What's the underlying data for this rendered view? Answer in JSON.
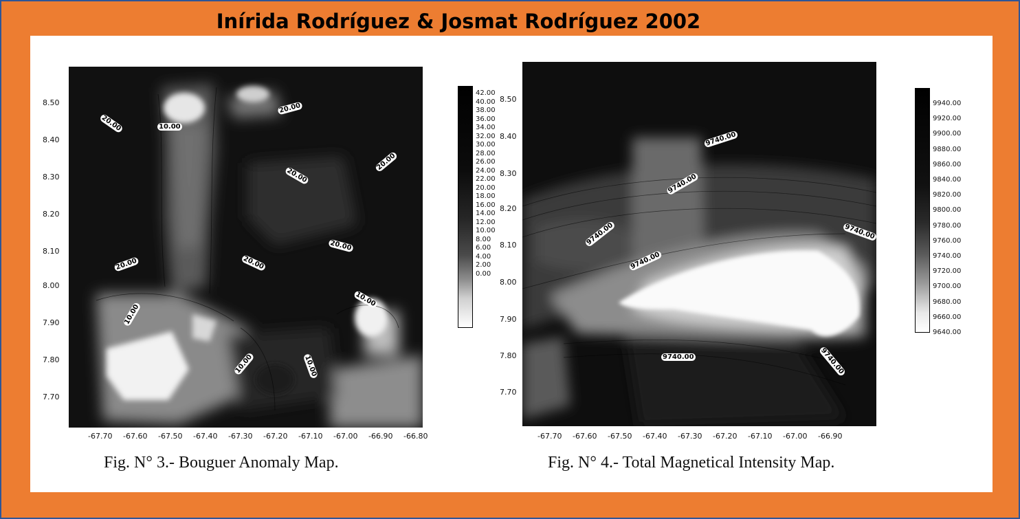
{
  "header": {
    "title": "Inírida Rodríguez & Josmat Rodríguez 2002"
  },
  "fig3": {
    "caption": "Fig. N° 3.- Bouguer Anomaly Map.",
    "y_ticks": [
      "8.50",
      "8.40",
      "8.30",
      "8.20",
      "8.10",
      "8.00",
      "7.90",
      "7.80",
      "7.70"
    ],
    "x_ticks": [
      "-67.70",
      "-67.60",
      "-67.50",
      "-67.40",
      "-67.30",
      "-67.20",
      "-67.10",
      "-67.00",
      "-66.90",
      "-66.80"
    ],
    "colorbar": [
      "42.00",
      "40.00",
      "38.00",
      "36.00",
      "34.00",
      "32.00",
      "30.00",
      "28.00",
      "26.00",
      "24.00",
      "22.00",
      "20.00",
      "18.00",
      "16.00",
      "14.00",
      "12.00",
      "10.00",
      "8.00",
      "6.00",
      "4.00",
      "2.00",
      "0.00"
    ],
    "contours": [
      "20.00",
      "10.00",
      "20.00",
      "20.00",
      "20.00",
      "20.00",
      "20.00",
      "20.00",
      "10.00",
      "10.00",
      "10.00",
      "10.00"
    ]
  },
  "fig4": {
    "caption": "Fig. N° 4.- Total  Magnetical Intensity Map.",
    "y_ticks": [
      "8.50",
      "8.40",
      "8.30",
      "8.20",
      "8.10",
      "8.00",
      "7.90",
      "7.80",
      "7.70"
    ],
    "x_ticks": [
      "-67.70",
      "-67.60",
      "-67.50",
      "-67.40",
      "-67.30",
      "-67.20",
      "-67.10",
      "-67.00",
      "-66.90"
    ],
    "colorbar": [
      "9940.00",
      "9920.00",
      "9900.00",
      "9880.00",
      "9860.00",
      "9840.00",
      "9820.00",
      "9800.00",
      "9780.00",
      "9760.00",
      "9740.00",
      "9720.00",
      "9700.00",
      "9680.00",
      "9660.00",
      "9640.00"
    ],
    "contours": [
      "9740.00",
      "9740.00",
      "9740.00",
      "9740.00",
      "9740.00",
      "9740.00",
      "9740.00"
    ]
  }
}
